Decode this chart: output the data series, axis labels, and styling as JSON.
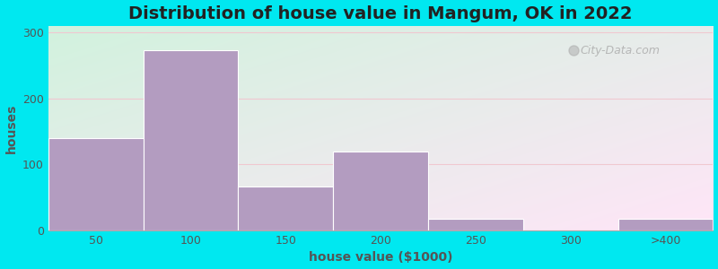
{
  "title": "Distribution of house value in Mangum, OK in 2022",
  "xlabel": "house value ($1000)",
  "ylabel": "houses",
  "bar_labels": [
    "50",
    "100",
    "150",
    "200",
    "250",
    "300",
    ">400"
  ],
  "bar_heights": [
    140,
    273,
    67,
    120,
    18,
    0,
    18
  ],
  "bar_color": "#b39cc0",
  "bar_edge_color": "#ffffff",
  "background_outer": "#00e8f0",
  "yticks": [
    0,
    100,
    200,
    300
  ],
  "ylim": [
    0,
    310
  ],
  "title_fontsize": 14,
  "axis_label_fontsize": 10,
  "tick_fontsize": 9,
  "watermark_text": "City-Data.com",
  "watermark_color": "#aaaaaa",
  "grid_color": "#f0c8d0",
  "bg_color_topleft": "#e0f0e0",
  "bg_color_topright": "#e8f0f8",
  "bg_color_bottomleft": "#d8edd8",
  "bg_color_bottomright": "#e0ecf4"
}
